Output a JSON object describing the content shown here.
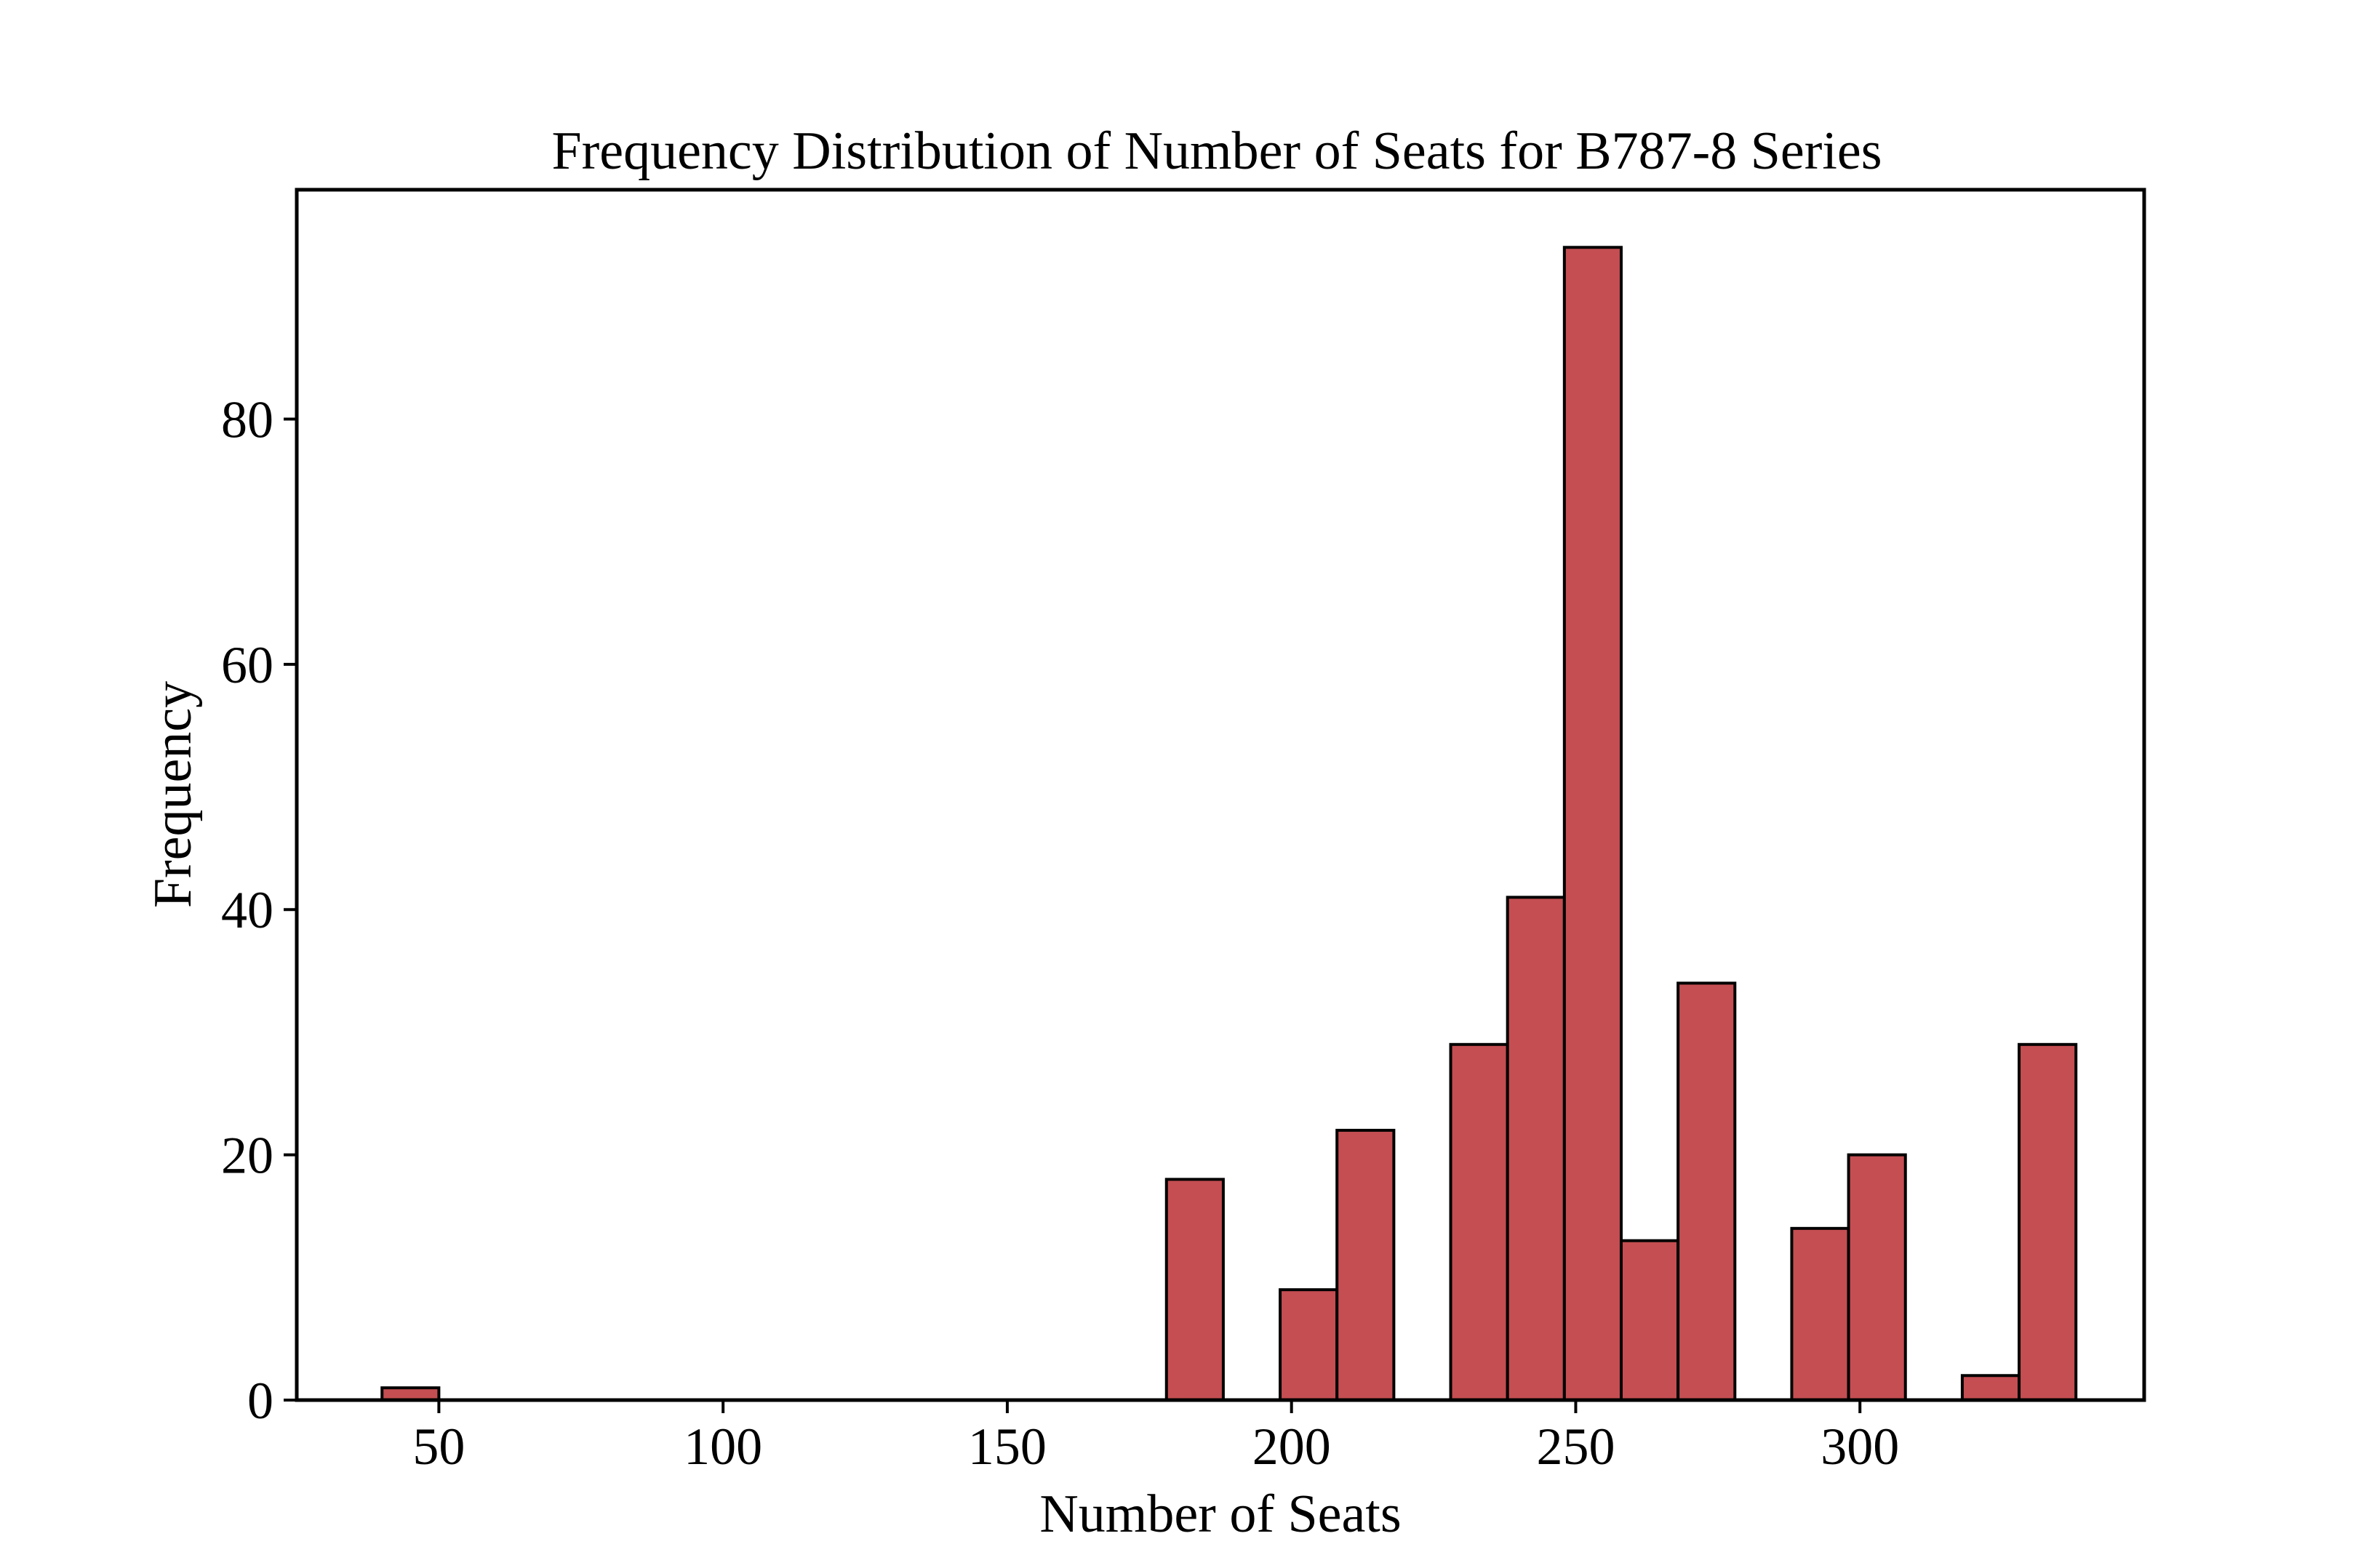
{
  "chart_data": {
    "type": "bar",
    "title": "Frequency Distribution of Number of Seats for B787-8 Series",
    "xlabel": "Number of Seats",
    "ylabel": "Frequency",
    "xlim": [
      25,
      350
    ],
    "ylim": [
      0,
      98.7
    ],
    "x_ticks": [
      50,
      100,
      150,
      200,
      250,
      300
    ],
    "y_ticks": [
      0,
      20,
      40,
      60,
      80
    ],
    "grid": false,
    "legend": "none",
    "bar_color": "#c44e52",
    "edge_color": "#000000",
    "bins": [
      {
        "x0": 40,
        "x1": 50,
        "count": 1
      },
      {
        "x0": 178,
        "x1": 188,
        "count": 18
      },
      {
        "x0": 198,
        "x1": 208,
        "count": 9
      },
      {
        "x0": 208,
        "x1": 218,
        "count": 22
      },
      {
        "x0": 228,
        "x1": 238,
        "count": 29
      },
      {
        "x0": 238,
        "x1": 248,
        "count": 41
      },
      {
        "x0": 248,
        "x1": 258,
        "count": 94
      },
      {
        "x0": 258,
        "x1": 268,
        "count": 13
      },
      {
        "x0": 268,
        "x1": 278,
        "count": 34
      },
      {
        "x0": 288,
        "x1": 298,
        "count": 14
      },
      {
        "x0": 298,
        "x1": 308,
        "count": 20
      },
      {
        "x0": 318,
        "x1": 328,
        "count": 2
      },
      {
        "x0": 328,
        "x1": 338,
        "count": 29
      }
    ]
  }
}
